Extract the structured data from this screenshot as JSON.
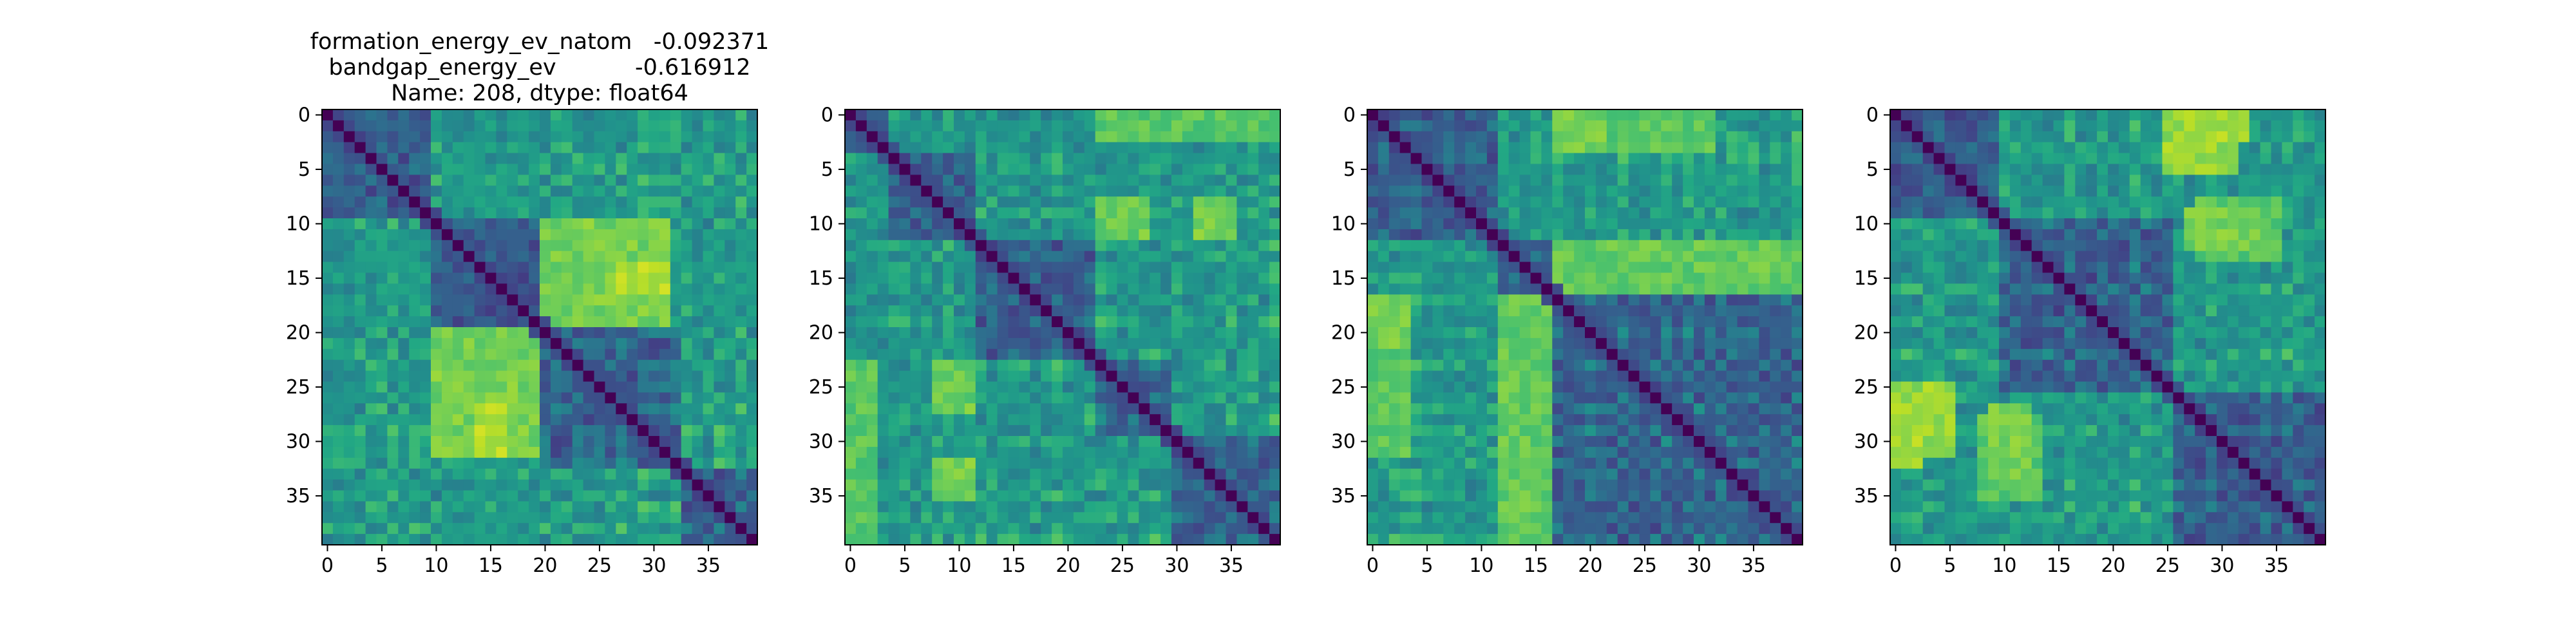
{
  "chart_data": [
    {
      "type": "heatmap",
      "title_lines": [
        "formation_energy_ev_natom   -0.092371",
        "bandgap_energy_ev           -0.616912",
        "Name: 208, dtype: float64"
      ],
      "size": 40,
      "x_ticks": [
        0,
        5,
        10,
        15,
        20,
        25,
        30,
        35
      ],
      "y_ticks": [
        0,
        5,
        10,
        15,
        20,
        25,
        30,
        35
      ],
      "colormap": "viridis",
      "diagonal": "dark",
      "seed": 11,
      "blocks": [
        [
          0,
          10
        ],
        [
          10,
          20
        ],
        [
          20,
          33
        ],
        [
          33,
          40
        ]
      ],
      "hot_regions": [
        {
          "rows": [
            10,
            20
          ],
          "cols": [
            20,
            32
          ],
          "value": 0.85
        },
        {
          "rows": [
            20,
            32
          ],
          "cols": [
            10,
            20
          ],
          "value": 0.85
        },
        {
          "rows": [
            14,
            17
          ],
          "cols": [
            27,
            32
          ],
          "value": 0.98
        },
        {
          "rows": [
            27,
            32
          ],
          "cols": [
            14,
            17
          ],
          "value": 0.95
        }
      ]
    },
    {
      "type": "heatmap",
      "title_lines": [],
      "size": 40,
      "x_ticks": [
        0,
        5,
        10,
        15,
        20,
        25,
        30,
        35
      ],
      "y_ticks": [
        0,
        5,
        10,
        15,
        20,
        25,
        30,
        35
      ],
      "colormap": "viridis",
      "diagonal": "dark",
      "seed": 23,
      "blocks": [
        [
          0,
          4
        ],
        [
          4,
          12
        ],
        [
          12,
          23
        ],
        [
          23,
          30
        ],
        [
          30,
          40
        ]
      ],
      "hot_regions": [
        {
          "rows": [
            0,
            3
          ],
          "cols": [
            23,
            40
          ],
          "value": 0.85
        },
        {
          "rows": [
            23,
            40
          ],
          "cols": [
            0,
            3
          ],
          "value": 0.8
        },
        {
          "rows": [
            8,
            12
          ],
          "cols": [
            23,
            28
          ],
          "value": 0.85
        },
        {
          "rows": [
            8,
            12
          ],
          "cols": [
            32,
            36
          ],
          "value": 0.85
        },
        {
          "rows": [
            23,
            27
          ],
          "cols": [
            8,
            12
          ],
          "value": 0.82
        },
        {
          "rows": [
            32,
            36
          ],
          "cols": [
            8,
            12
          ],
          "value": 0.85
        }
      ]
    },
    {
      "type": "heatmap",
      "title_lines": [],
      "size": 40,
      "x_ticks": [
        0,
        5,
        10,
        15,
        20,
        25,
        30,
        35
      ],
      "y_ticks": [
        0,
        5,
        10,
        15,
        20,
        25,
        30,
        35
      ],
      "colormap": "viridis",
      "diagonal": "dark",
      "seed": 37,
      "blocks": [
        [
          0,
          12
        ],
        [
          12,
          17
        ],
        [
          17,
          40
        ]
      ],
      "hot_regions": [
        {
          "rows": [
            0,
            4
          ],
          "cols": [
            17,
            32
          ],
          "value": 0.8
        },
        {
          "rows": [
            12,
            17
          ],
          "cols": [
            17,
            34
          ],
          "value": 0.85
        },
        {
          "rows": [
            17,
            40
          ],
          "cols": [
            12,
            17
          ],
          "value": 0.82
        },
        {
          "rows": [
            17,
            22
          ],
          "cols": [
            0,
            4
          ],
          "value": 0.85
        }
      ]
    },
    {
      "type": "heatmap",
      "title_lines": [],
      "size": 40,
      "x_ticks": [
        0,
        5,
        10,
        15,
        20,
        25,
        30,
        35
      ],
      "y_ticks": [
        0,
        5,
        10,
        15,
        20,
        25,
        30,
        35
      ],
      "colormap": "viridis",
      "diagonal": "dark",
      "seed": 53,
      "blocks": [
        [
          0,
          10
        ],
        [
          10,
          26
        ],
        [
          26,
          40
        ]
      ],
      "hot_regions": [
        {
          "rows": [
            0,
            6
          ],
          "cols": [
            25,
            32
          ],
          "value": 0.9
        },
        {
          "rows": [
            8,
            14
          ],
          "cols": [
            28,
            36
          ],
          "value": 0.8
        },
        {
          "rows": [
            27,
            33
          ],
          "cols": [
            0,
            3
          ],
          "value": 0.92
        },
        {
          "rows": [
            27,
            34
          ],
          "cols": [
            9,
            13
          ],
          "value": 0.85
        }
      ]
    }
  ]
}
